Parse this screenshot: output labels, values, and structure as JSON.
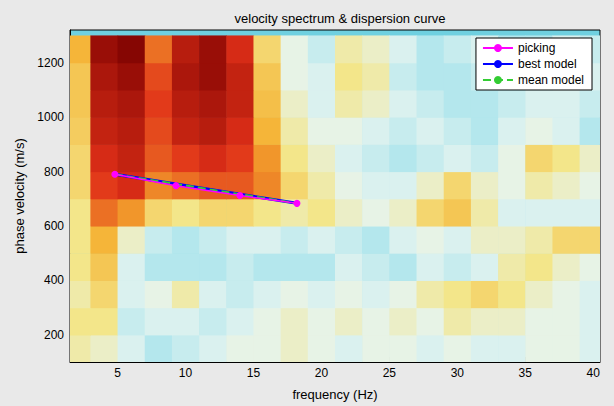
{
  "chart_data": {
    "type": "line",
    "title": "velocity spectrum & dispersion curve",
    "x_label": "frequency (Hz)",
    "y_label": "phase velocity (m/s)",
    "xlim": [
      1.5,
      40.5
    ],
    "xticks": [
      5,
      10,
      15,
      20,
      25,
      30,
      35,
      40
    ],
    "ylim": [
      100,
      1320
    ],
    "yticks": [
      200,
      400,
      600,
      800,
      1000,
      1200
    ],
    "grid": false,
    "legend": "upper right",
    "heatmap": {
      "x_edges": [
        1,
        3,
        5,
        7,
        9,
        11,
        13,
        15,
        17,
        19,
        21,
        23,
        25,
        27,
        29,
        31,
        33,
        35,
        37,
        39,
        41
      ],
      "y_edges": [
        100,
        200,
        300,
        400,
        500,
        600,
        700,
        800,
        900,
        1000,
        1100,
        1200,
        1300
      ],
      "zlim": [
        0,
        1
      ],
      "cells": [
        [
          0.45,
          0.4,
          0.3,
          0.2,
          0.25,
          0.3,
          0.35,
          0.35,
          0.4,
          0.35,
          0.3,
          0.35,
          0.35,
          0.3,
          0.35,
          0.3,
          0.3,
          0.35,
          0.35,
          0.3
        ],
        [
          0.5,
          0.5,
          0.25,
          0.3,
          0.3,
          0.25,
          0.3,
          0.35,
          0.4,
          0.35,
          0.4,
          0.35,
          0.4,
          0.35,
          0.45,
          0.4,
          0.4,
          0.35,
          0.35,
          0.3
        ],
        [
          0.45,
          0.55,
          0.3,
          0.35,
          0.45,
          0.3,
          0.25,
          0.3,
          0.35,
          0.3,
          0.35,
          0.3,
          0.35,
          0.45,
          0.5,
          0.55,
          0.5,
          0.4,
          0.35,
          0.3
        ],
        [
          0.5,
          0.6,
          0.3,
          0.2,
          0.2,
          0.2,
          0.25,
          0.2,
          0.2,
          0.2,
          0.3,
          0.25,
          0.2,
          0.3,
          0.25,
          0.3,
          0.45,
          0.5,
          0.4,
          0.35
        ],
        [
          0.5,
          0.65,
          0.4,
          0.25,
          0.2,
          0.25,
          0.3,
          0.3,
          0.25,
          0.3,
          0.25,
          0.2,
          0.3,
          0.35,
          0.3,
          0.4,
          0.4,
          0.45,
          0.55,
          0.55
        ],
        [
          0.5,
          0.75,
          0.7,
          0.55,
          0.5,
          0.55,
          0.55,
          0.5,
          0.45,
          0.5,
          0.4,
          0.35,
          0.4,
          0.55,
          0.6,
          0.45,
          0.3,
          0.3,
          0.3,
          0.3
        ],
        [
          0.55,
          0.82,
          0.85,
          0.72,
          0.75,
          0.78,
          0.78,
          0.72,
          0.55,
          0.45,
          0.35,
          0.3,
          0.3,
          0.4,
          0.55,
          0.4,
          0.35,
          0.45,
          0.4,
          0.35
        ],
        [
          0.55,
          0.85,
          0.88,
          0.78,
          0.82,
          0.85,
          0.82,
          0.7,
          0.5,
          0.4,
          0.3,
          0.25,
          0.2,
          0.25,
          0.3,
          0.25,
          0.35,
          0.55,
          0.5,
          0.4
        ],
        [
          0.58,
          0.88,
          0.9,
          0.8,
          0.88,
          0.9,
          0.85,
          0.65,
          0.45,
          0.35,
          0.35,
          0.3,
          0.25,
          0.3,
          0.25,
          0.2,
          0.3,
          0.35,
          0.3,
          0.2
        ],
        [
          0.6,
          0.9,
          0.92,
          0.82,
          0.9,
          0.92,
          0.88,
          0.62,
          0.4,
          0.3,
          0.45,
          0.4,
          0.3,
          0.25,
          0.2,
          0.2,
          0.25,
          0.3,
          0.3,
          0.25
        ],
        [
          0.6,
          0.92,
          0.95,
          0.8,
          0.92,
          0.95,
          0.88,
          0.6,
          0.35,
          0.3,
          0.5,
          0.45,
          0.25,
          0.2,
          0.2,
          0.25,
          0.2,
          0.25,
          0.3,
          0.3
        ],
        [
          0.65,
          0.95,
          0.98,
          0.75,
          0.9,
          0.95,
          0.85,
          0.55,
          0.35,
          0.25,
          0.45,
          0.4,
          0.3,
          0.2,
          0.25,
          0.3,
          0.2,
          0.2,
          0.3,
          0.25
        ]
      ]
    },
    "series": [
      {
        "name": "picking",
        "color": "#ff00ff",
        "marker": "circle",
        "line_style": "solid",
        "x": [
          4.8,
          9.3,
          14.0,
          18.2
        ],
        "values": [
          790,
          748,
          712,
          683
        ]
      },
      {
        "name": "best model",
        "color": "#0000ff",
        "line_style": "solid",
        "x": [
          4.8,
          18.2
        ],
        "values": [
          790,
          683
        ]
      },
      {
        "name": "mean model",
        "color": "#33cc33",
        "line_style": "dashed",
        "x": [
          4.8,
          18.2
        ],
        "values": [
          790,
          683
        ]
      }
    ]
  }
}
